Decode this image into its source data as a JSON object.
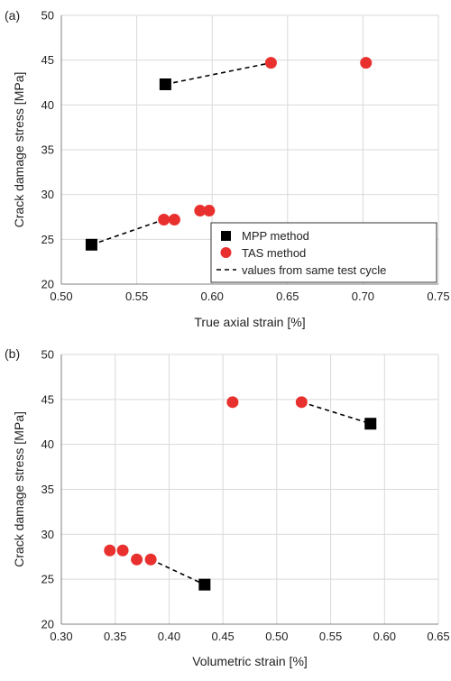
{
  "colors": {
    "mpp": "#000000",
    "tas": "#e8302e",
    "grid": "#d9d9d9",
    "axis": "#7f7f7f",
    "legend_border": "#333333"
  },
  "legend": {
    "mpp": "MPP method",
    "tas": "TAS method",
    "pair": "values from same test cycle"
  },
  "chart_data": [
    {
      "panel": "(a)",
      "type": "scatter",
      "xlabel": "True axial strain [%]",
      "ylabel": "Crack damage stress [MPa]",
      "xlim": [
        0.5,
        0.75
      ],
      "ylim": [
        20,
        50
      ],
      "xticks": [
        "0.50",
        "0.55",
        "0.60",
        "0.65",
        "0.70",
        "0.75"
      ],
      "yticks": [
        "20",
        "25",
        "30",
        "35",
        "40",
        "45",
        "50"
      ],
      "grid": true,
      "legend_position": "bottom-right",
      "series": [
        {
          "name": "MPP method",
          "marker": "square",
          "points": [
            [
              0.52,
              24.4
            ],
            [
              0.569,
              42.3
            ]
          ]
        },
        {
          "name": "TAS method",
          "marker": "circle",
          "points": [
            [
              0.568,
              27.2
            ],
            [
              0.575,
              27.2
            ],
            [
              0.592,
              28.2
            ],
            [
              0.598,
              28.2
            ],
            [
              0.639,
              44.7
            ],
            [
              0.702,
              44.7
            ]
          ]
        }
      ],
      "pairs": [
        [
          [
            0.52,
            24.4
          ],
          [
            0.568,
            27.2
          ]
        ],
        [
          [
            0.569,
            42.3
          ],
          [
            0.639,
            44.7
          ]
        ]
      ]
    },
    {
      "panel": "(b)",
      "type": "scatter",
      "xlabel": "Volumetric strain [%]",
      "ylabel": "Crack damage stress [MPa]",
      "xlim": [
        0.3,
        0.65
      ],
      "ylim": [
        20,
        50
      ],
      "xticks": [
        "0.30",
        "0.35",
        "0.40",
        "0.45",
        "0.50",
        "0.55",
        "0.60",
        "0.65"
      ],
      "yticks": [
        "20",
        "25",
        "30",
        "35",
        "40",
        "45",
        "50"
      ],
      "grid": true,
      "legend_position": "none",
      "series": [
        {
          "name": "MPP method",
          "marker": "square",
          "points": [
            [
              0.433,
              24.4
            ],
            [
              0.587,
              42.3
            ]
          ]
        },
        {
          "name": "TAS method",
          "marker": "circle",
          "points": [
            [
              0.345,
              28.2
            ],
            [
              0.357,
              28.2
            ],
            [
              0.37,
              27.2
            ],
            [
              0.383,
              27.2
            ],
            [
              0.459,
              44.7
            ],
            [
              0.523,
              44.7
            ]
          ]
        }
      ],
      "pairs": [
        [
          [
            0.383,
            27.2
          ],
          [
            0.433,
            24.4
          ]
        ],
        [
          [
            0.523,
            44.7
          ],
          [
            0.587,
            42.3
          ]
        ]
      ]
    }
  ]
}
